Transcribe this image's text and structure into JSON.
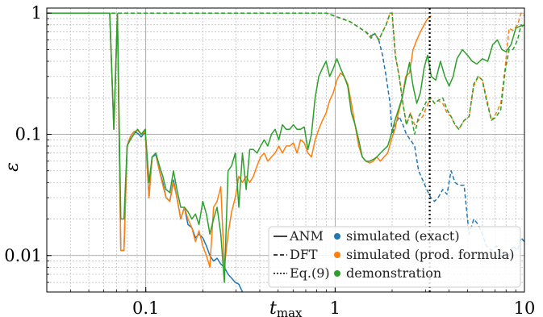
{
  "chart_data": {
    "type": "line",
    "xlabel": "t",
    "xlabel_sub": "max",
    "ylabel": "ε",
    "x_scale": "log",
    "y_scale": "log",
    "xlim": [
      0.03,
      10
    ],
    "ylim": [
      0.005,
      1.1
    ],
    "x_ticks": [
      {
        "value": 0.1,
        "label": "0.1"
      },
      {
        "value": 1,
        "label": "1"
      },
      {
        "value": 10,
        "label": "10"
      }
    ],
    "y_ticks": [
      {
        "value": 0.01,
        "label": "0.01"
      },
      {
        "value": 0.1,
        "label": "0.1"
      },
      {
        "value": 1,
        "label": "1"
      }
    ],
    "grid": true,
    "legend_position": "bottom-right",
    "legend": {
      "line_styles": [
        {
          "style": "solid",
          "label": "ANM"
        },
        {
          "style": "dashed",
          "label": "DFT"
        },
        {
          "style": "dotted",
          "label": "Eq.(9)"
        }
      ],
      "colors": [
        {
          "color": "#1f77b4",
          "label": "simulated (exact)"
        },
        {
          "color": "#ff7f0e",
          "label": "simulated (prod. formula)"
        },
        {
          "color": "#2ca02c",
          "label": "demonstration"
        }
      ]
    },
    "vline": {
      "x": 3.16,
      "style": "dotted",
      "color": "#000000"
    },
    "series": [
      {
        "name": "simulated (exact)",
        "color": "#1f77b4",
        "style": "solid",
        "x": [
          0.03,
          0.0645,
          0.0678,
          0.0708,
          0.0738,
          0.0767,
          0.0797,
          0.0828,
          0.0865,
          0.0905,
          0.0947,
          0.0993,
          0.104,
          0.108,
          0.113,
          0.118,
          0.123,
          0.128,
          0.134,
          0.14,
          0.146,
          0.153,
          0.16,
          0.167,
          0.175,
          0.183,
          0.191,
          0.2,
          0.209,
          0.218,
          0.228,
          0.238,
          0.249,
          0.26,
          0.272,
          0.284,
          0.297,
          0.31,
          0.324
        ],
        "y": [
          1.0,
          1.0,
          0.11,
          0.98,
          0.011,
          0.011,
          0.08,
          0.095,
          0.105,
          0.102,
          0.095,
          0.105,
          0.03,
          0.065,
          0.068,
          0.05,
          0.04,
          0.03,
          0.028,
          0.042,
          0.03,
          0.02,
          0.025,
          0.018,
          0.017,
          0.014,
          0.015,
          0.014,
          0.012,
          0.01,
          0.009,
          0.0095,
          0.0085,
          0.008,
          0.007,
          0.0065,
          0.006,
          0.0058,
          0.005
        ]
      },
      {
        "name": "simulated (exact)",
        "color": "#1f77b4",
        "style": "dashed",
        "x": [
          0.03,
          0.9,
          1.2,
          1.45,
          1.55,
          1.62,
          1.7,
          1.78,
          1.86,
          1.95,
          2.0,
          2.08,
          2.18,
          2.28,
          2.38,
          2.5,
          2.63,
          2.76,
          2.9,
          3.05,
          3.2,
          3.35,
          3.5,
          3.7,
          3.9,
          4.1,
          4.3,
          4.5,
          4.8,
          5.1,
          5.4,
          5.7,
          6.0,
          6.3,
          6.7,
          7.1,
          7.5,
          7.9,
          8.3,
          8.7,
          9.2,
          9.6,
          10.0
        ],
        "y": [
          1.0,
          1.0,
          0.85,
          0.7,
          0.65,
          0.68,
          0.6,
          0.45,
          0.3,
          0.18,
          0.1,
          0.12,
          0.14,
          0.12,
          0.1,
          0.09,
          0.08,
          0.05,
          0.042,
          0.035,
          0.03,
          0.028,
          0.03,
          0.035,
          0.032,
          0.05,
          0.04,
          0.038,
          0.038,
          0.015,
          0.02,
          0.018,
          0.015,
          0.012,
          0.011,
          0.012,
          0.01,
          0.009,
          0.01,
          0.012,
          0.011,
          0.014,
          0.013
        ]
      },
      {
        "name": "simulated (prod. formula)",
        "color": "#ff7f0e",
        "style": "solid",
        "x": [
          0.03,
          0.0645,
          0.0678,
          0.0708,
          0.0738,
          0.0767,
          0.0797,
          0.0828,
          0.0865,
          0.0905,
          0.0947,
          0.0993,
          0.104,
          0.108,
          0.113,
          0.118,
          0.123,
          0.128,
          0.134,
          0.14,
          0.146,
          0.153,
          0.16,
          0.167,
          0.175,
          0.183,
          0.191,
          0.2,
          0.209,
          0.218,
          0.228,
          0.238,
          0.249,
          0.26,
          0.272,
          0.284,
          0.297,
          0.31,
          0.324,
          0.339,
          0.354,
          0.37,
          0.387,
          0.404,
          0.422,
          0.441,
          0.461,
          0.482,
          0.504,
          0.527,
          0.551,
          0.576,
          0.602,
          0.629,
          0.657,
          0.687,
          0.718,
          0.75,
          0.784,
          0.82,
          0.857,
          0.896,
          0.936,
          0.978,
          1.022,
          1.068,
          1.116,
          1.166,
          1.219,
          1.274,
          1.332,
          1.392,
          1.455,
          1.52,
          1.589,
          1.66,
          1.735,
          1.813,
          1.895,
          1.98,
          2.07,
          2.16,
          2.26,
          2.36,
          2.47,
          2.58,
          2.7,
          2.82,
          2.95,
          3.08,
          3.22
        ],
        "y": [
          1.0,
          1.0,
          0.11,
          0.98,
          0.011,
          0.011,
          0.08,
          0.095,
          0.105,
          0.108,
          0.1,
          0.105,
          0.03,
          0.065,
          0.07,
          0.05,
          0.038,
          0.03,
          0.028,
          0.04,
          0.03,
          0.02,
          0.025,
          0.02,
          0.017,
          0.013,
          0.016,
          0.012,
          0.01,
          0.008,
          0.025,
          0.028,
          0.037,
          0.008,
          0.015,
          0.023,
          0.03,
          0.045,
          0.04,
          0.045,
          0.04,
          0.045,
          0.055,
          0.065,
          0.07,
          0.06,
          0.065,
          0.07,
          0.08,
          0.07,
          0.08,
          0.08,
          0.085,
          0.07,
          0.09,
          0.085,
          0.07,
          0.065,
          0.09,
          0.11,
          0.13,
          0.15,
          0.19,
          0.22,
          0.28,
          0.32,
          0.3,
          0.26,
          0.18,
          0.12,
          0.08,
          0.065,
          0.06,
          0.058,
          0.06,
          0.065,
          0.06,
          0.065,
          0.07,
          0.09,
          0.11,
          0.15,
          0.2,
          0.3,
          0.32,
          0.5,
          0.6,
          0.7,
          0.8,
          0.9,
          0.95
        ]
      },
      {
        "name": "simulated (prod. formula)",
        "color": "#ff7f0e",
        "style": "dashed",
        "x": [
          0.03,
          0.9,
          1.2,
          1.45,
          1.55,
          1.62,
          1.7,
          1.78,
          1.86,
          1.95,
          2.0,
          2.08,
          2.18,
          2.28,
          2.38,
          2.5,
          2.63,
          2.76,
          2.9,
          3.05,
          3.2,
          3.35,
          3.5,
          3.7,
          3.9,
          4.1,
          4.3,
          4.5,
          4.8,
          5.1,
          5.4,
          5.7,
          6.0,
          6.3,
          6.7,
          7.1,
          7.5,
          7.9,
          8.3,
          8.7,
          9.2,
          9.6,
          10.0
        ],
        "y": [
          1.0,
          1.0,
          0.85,
          0.7,
          0.63,
          0.68,
          0.6,
          0.7,
          0.8,
          1.0,
          1.0,
          0.45,
          0.3,
          0.18,
          0.12,
          0.15,
          0.12,
          0.13,
          0.14,
          0.17,
          0.2,
          0.18,
          0.19,
          0.18,
          0.15,
          0.14,
          0.12,
          0.11,
          0.13,
          0.14,
          0.25,
          0.3,
          0.28,
          0.2,
          0.13,
          0.15,
          0.18,
          0.35,
          0.75,
          0.72,
          0.8,
          1.0,
          0.95
        ]
      },
      {
        "name": "demonstration",
        "color": "#2ca02c",
        "style": "solid",
        "x": [
          0.03,
          0.0645,
          0.0678,
          0.0708,
          0.0738,
          0.0767,
          0.0797,
          0.0828,
          0.0865,
          0.0905,
          0.0947,
          0.0993,
          0.104,
          0.108,
          0.113,
          0.118,
          0.123,
          0.128,
          0.134,
          0.14,
          0.146,
          0.153,
          0.16,
          0.167,
          0.175,
          0.183,
          0.191,
          0.2,
          0.209,
          0.218,
          0.228,
          0.238,
          0.249,
          0.26,
          0.272,
          0.284,
          0.297,
          0.31,
          0.324,
          0.339,
          0.354,
          0.37,
          0.387,
          0.404,
          0.422,
          0.441,
          0.461,
          0.482,
          0.504,
          0.527,
          0.551,
          0.576,
          0.602,
          0.629,
          0.657,
          0.687,
          0.718,
          0.75,
          0.784,
          0.82,
          0.857,
          0.896,
          0.936,
          0.978,
          1.022,
          1.068,
          1.116,
          1.166,
          1.219,
          1.274,
          1.332,
          1.392,
          1.455,
          1.52,
          1.589,
          1.66,
          1.735,
          1.813,
          1.895,
          1.98,
          2.07,
          2.16,
          2.26,
          2.36,
          2.47,
          2.58,
          2.7,
          2.82,
          2.95,
          3.08,
          3.22,
          3.4,
          3.6,
          3.8,
          4.0,
          4.2,
          4.4,
          4.7,
          5.0,
          5.3,
          5.6,
          6.0,
          6.4,
          6.8,
          7.2,
          7.6,
          8.0,
          8.5,
          9.0,
          9.5,
          10.0
        ],
        "y": [
          1.0,
          1.0,
          0.11,
          0.98,
          0.02,
          0.02,
          0.08,
          0.09,
          0.1,
          0.11,
          0.1,
          0.11,
          0.04,
          0.065,
          0.07,
          0.055,
          0.045,
          0.035,
          0.033,
          0.05,
          0.035,
          0.025,
          0.025,
          0.023,
          0.02,
          0.022,
          0.018,
          0.028,
          0.022,
          0.015,
          0.02,
          0.025,
          0.015,
          0.006,
          0.05,
          0.055,
          0.07,
          0.025,
          0.07,
          0.035,
          0.075,
          0.075,
          0.07,
          0.08,
          0.09,
          0.08,
          0.1,
          0.11,
          0.09,
          0.12,
          0.11,
          0.11,
          0.12,
          0.11,
          0.11,
          0.115,
          0.075,
          0.1,
          0.2,
          0.3,
          0.35,
          0.4,
          0.3,
          0.35,
          0.42,
          0.35,
          0.3,
          0.25,
          0.15,
          0.12,
          0.09,
          0.065,
          0.06,
          0.06,
          0.062,
          0.065,
          0.07,
          0.075,
          0.08,
          0.1,
          0.13,
          0.16,
          0.2,
          0.28,
          0.39,
          0.25,
          0.18,
          0.22,
          0.35,
          0.45,
          0.3,
          0.28,
          0.4,
          0.3,
          0.25,
          0.3,
          0.42,
          0.5,
          0.45,
          0.4,
          0.38,
          0.42,
          0.4,
          0.55,
          0.6,
          0.5,
          0.48,
          0.55,
          0.75,
          0.78,
          0.8
        ]
      },
      {
        "name": "demonstration",
        "color": "#2ca02c",
        "style": "dashed",
        "x": [
          0.03,
          0.9,
          1.2,
          1.45,
          1.55,
          1.62,
          1.7,
          1.78,
          1.86,
          1.95,
          2.0,
          2.08,
          2.18,
          2.28,
          2.38,
          2.5,
          2.63,
          2.76,
          2.9,
          3.05,
          3.2,
          3.35,
          3.5,
          3.7,
          3.9,
          4.1,
          4.3,
          4.5,
          4.8,
          5.1,
          5.4,
          5.7,
          6.0,
          6.3,
          6.7,
          7.1,
          7.5,
          7.9,
          8.3,
          8.7,
          9.2,
          9.6,
          10.0
        ],
        "y": [
          1.0,
          1.0,
          0.85,
          0.7,
          0.62,
          0.68,
          0.6,
          0.7,
          0.8,
          1.0,
          1.0,
          0.45,
          0.3,
          0.18,
          0.12,
          0.15,
          0.1,
          0.14,
          0.16,
          0.19,
          0.2,
          0.18,
          0.19,
          0.2,
          0.16,
          0.14,
          0.12,
          0.11,
          0.13,
          0.14,
          0.26,
          0.3,
          0.28,
          0.19,
          0.13,
          0.14,
          0.16,
          0.33,
          0.5,
          0.5,
          0.6,
          0.8,
          0.75
        ]
      }
    ]
  }
}
